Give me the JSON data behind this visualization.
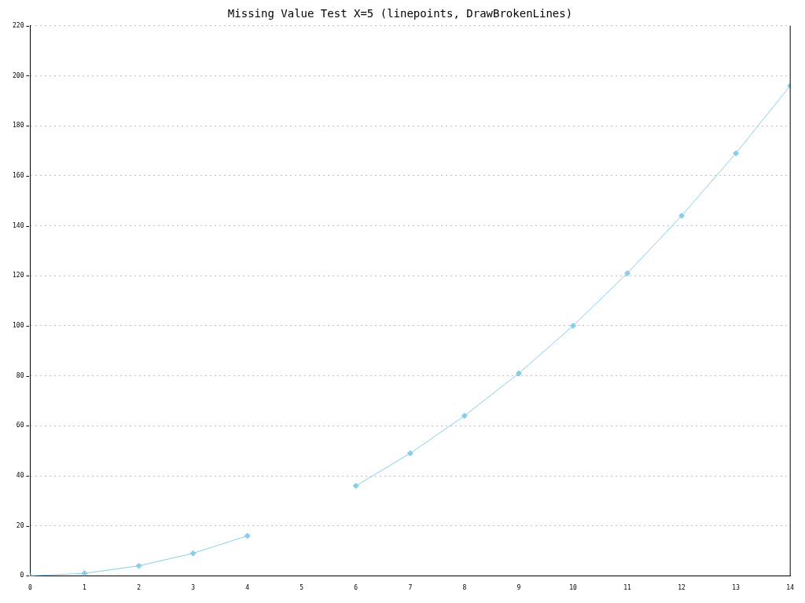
{
  "chart_data": {
    "type": "line",
    "title": "Missing Value Test X=5 (linepoints, DrawBrokenLines)",
    "x": [
      0,
      1,
      2,
      3,
      4,
      5,
      6,
      7,
      8,
      9,
      10,
      11,
      12,
      13,
      14
    ],
    "series": [
      {
        "color": "#87ceeb",
        "values": [
          0,
          1,
          4,
          9,
          16,
          null,
          36,
          49,
          64,
          81,
          100,
          121,
          144,
          169,
          196
        ]
      }
    ],
    "xlim": [
      0,
      14
    ],
    "xticks": [
      0,
      1,
      2,
      3,
      4,
      5,
      6,
      7,
      8,
      9,
      10,
      11,
      12,
      13,
      14
    ],
    "ylim": [
      0,
      220
    ],
    "yticks": [
      0,
      20,
      40,
      60,
      80,
      100,
      120,
      140,
      160,
      180,
      200,
      220
    ],
    "grid": "y",
    "marker": "diamond",
    "line_style": "solid",
    "legend": false
  }
}
